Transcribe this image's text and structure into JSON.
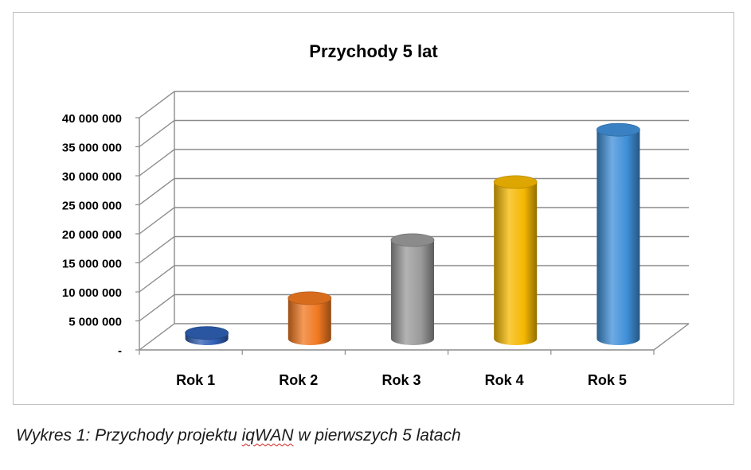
{
  "chart_data": {
    "type": "bar",
    "title": "Przychody 5 lat",
    "categories": [
      "Rok 1",
      "Rok 2",
      "Rok 3",
      "Rok 4",
      "Rok 5"
    ],
    "values": [
      1000000,
      7000000,
      17000000,
      27000000,
      36000000
    ],
    "colors": [
      "#2f5fb3",
      "#f07820",
      "#9a9a9a",
      "#f5b800",
      "#3f8fd8"
    ],
    "ylim": [
      0,
      40000000
    ],
    "yticks": [
      0,
      5000000,
      10000000,
      15000000,
      20000000,
      25000000,
      30000000,
      35000000,
      40000000
    ],
    "ytick_labels": [
      "-",
      "5 000 000",
      "10 000 000",
      "15 000 000",
      "20 000 000",
      "25 000 000",
      "30 000 000",
      "35 000 000",
      "40 000 000"
    ],
    "grid": true,
    "style": "3d-cylinder",
    "xlabel": "",
    "ylabel": ""
  },
  "caption": {
    "prefix": "Wykres 1: Przychody projektu ",
    "highlight": "iqWAN",
    "suffix": " w pierwszych 5 latach"
  }
}
